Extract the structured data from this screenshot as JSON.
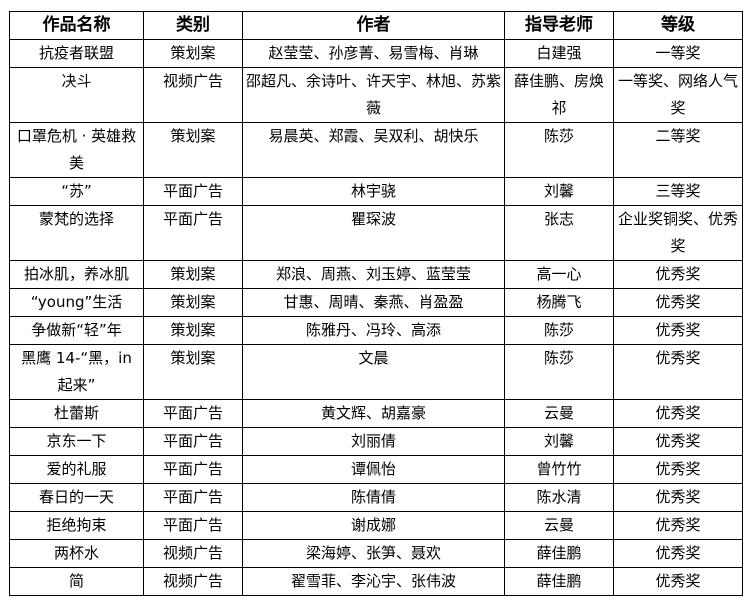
{
  "headers": [
    "作品名称",
    "类别",
    "作者",
    "指导老师",
    "等级"
  ],
  "rows": [
    {
      "name": "抗疫者联盟",
      "category": "策划案",
      "authors": "赵莹莹、孙彦菁、易雪梅、肖琳",
      "advisor": "白建强",
      "award": "一等奖"
    },
    {
      "name": "决斗",
      "category": "视频广告",
      "authors": "邵超凡、余诗叶、许天宇、林旭、苏紫薇",
      "advisor": "薛佳鹏、房焕祁",
      "award": "一等奖、网络人气奖"
    },
    {
      "name": "口罩危机 · 英雄救美",
      "category": "策划案",
      "authors": "易晨英、郑霞、吴双利、胡快乐",
      "advisor": "陈莎",
      "award": "二等奖"
    },
    {
      "name": "“苏”",
      "category": "平面广告",
      "authors": "林宇骁",
      "advisor": "刘馨",
      "award": "三等奖"
    },
    {
      "name": "蒙梵的选择",
      "category": "平面广告",
      "authors": "瞿琛波",
      "advisor": "张志",
      "award": "企业奖铜奖、优秀奖"
    },
    {
      "name": "拍冰肌，养冰肌",
      "category": "策划案",
      "authors": "郑浪、周燕、刘玉婷、蓝莹莹",
      "advisor": "高一心",
      "award": "优秀奖"
    },
    {
      "name": "“young”生活",
      "category": "策划案",
      "authors": "甘惠、周晴、秦燕、肖盈盈",
      "advisor": "杨腾飞",
      "award": "优秀奖"
    },
    {
      "name": "争做新“轻”年",
      "category": "策划案",
      "authors": "陈雅丹、冯玲、高添",
      "advisor": "陈莎",
      "award": "优秀奖"
    },
    {
      "name": "黑鹰 14-“黑，in 起来”",
      "category": "策划案",
      "authors": "文晨",
      "advisor": "陈莎",
      "award": "优秀奖"
    },
    {
      "name": "杜蕾斯",
      "category": "平面广告",
      "authors": "黄文辉、胡嘉豪",
      "advisor": "云曼",
      "award": "优秀奖"
    },
    {
      "name": "京东一下",
      "category": "平面广告",
      "authors": "刘丽倩",
      "advisor": "刘馨",
      "award": "优秀奖"
    },
    {
      "name": "爱的礼服",
      "category": "平面广告",
      "authors": "谭佩怡",
      "advisor": "曾竹竹",
      "award": "优秀奖"
    },
    {
      "name": "春日的一天",
      "category": "平面广告",
      "authors": "陈倩倩",
      "advisor": "陈水清",
      "award": "优秀奖"
    },
    {
      "name": "拒绝拘束",
      "category": "平面广告",
      "authors": "谢成娜",
      "advisor": "云曼",
      "award": "优秀奖"
    },
    {
      "name": "两杯水",
      "category": "视频广告",
      "authors": "梁海婷、张笋、聂欢",
      "advisor": "薛佳鹏",
      "award": "优秀奖"
    },
    {
      "name": "简",
      "category": "视频广告",
      "authors": "翟雪菲、李沁宇、张伟波",
      "advisor": "薛佳鹏",
      "award": "优秀奖"
    }
  ]
}
